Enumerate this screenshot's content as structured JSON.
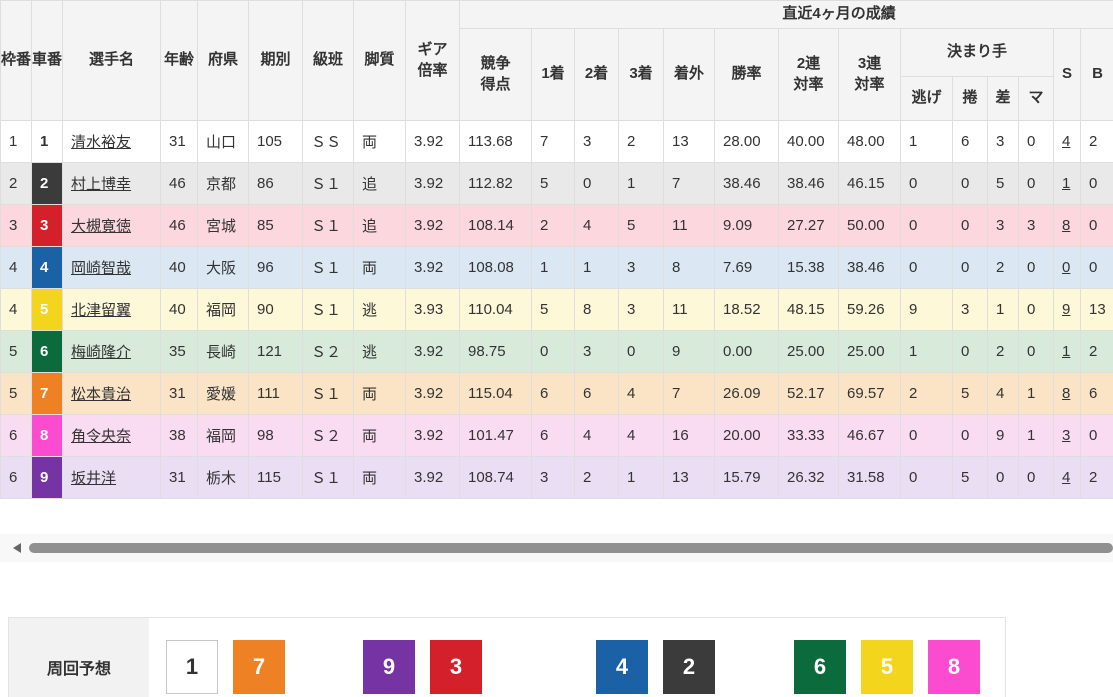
{
  "table": {
    "headers": {
      "waku": "枠番",
      "car": "車番",
      "name": "選手名",
      "age": "年齢",
      "pref": "府県",
      "period": "期別",
      "grade": "級班",
      "style": "脚質",
      "gear": "ギア倍率",
      "group": "直近4ヶ月の成績",
      "points": "競争得点",
      "first": "1着",
      "second": "2着",
      "third": "3着",
      "out": "着外",
      "win": "勝率",
      "q2": "2連対率",
      "q3": "3連対率",
      "kimarite": "決まり手",
      "nige": "逃げ",
      "makuri": "捲",
      "sashi": "差",
      "mark": "マ",
      "s": "S",
      "b": "B"
    },
    "rows": [
      {
        "waku": "1",
        "car": "1",
        "name": "清水裕友",
        "age": "31",
        "pref": "山口",
        "period": "105",
        "grade": "ＳＳ",
        "style": "両",
        "gear": "3.92",
        "points": "113.68",
        "first": "7",
        "second": "3",
        "third": "2",
        "out": "13",
        "win": "28.00",
        "q2": "40.00",
        "q3": "48.00",
        "nige": "1",
        "makuri": "6",
        "sashi": "3",
        "mark": "0",
        "s": "4",
        "b": "2",
        "tint": "#ffffff"
      },
      {
        "waku": "2",
        "car": "2",
        "name": "村上博幸",
        "age": "46",
        "pref": "京都",
        "period": "86",
        "grade": "Ｓ１",
        "style": "追",
        "gear": "3.92",
        "points": "112.82",
        "first": "5",
        "second": "0",
        "third": "1",
        "out": "7",
        "win": "38.46",
        "q2": "38.46",
        "q3": "46.15",
        "nige": "0",
        "makuri": "0",
        "sashi": "5",
        "mark": "0",
        "s": "1",
        "b": "0",
        "tint": "#e9e9e9"
      },
      {
        "waku": "3",
        "car": "3",
        "name": "大槻寛徳",
        "age": "46",
        "pref": "宮城",
        "period": "85",
        "grade": "Ｓ１",
        "style": "追",
        "gear": "3.92",
        "points": "108.14",
        "first": "2",
        "second": "4",
        "third": "5",
        "out": "11",
        "win": "9.09",
        "q2": "27.27",
        "q3": "50.00",
        "nige": "0",
        "makuri": "0",
        "sashi": "3",
        "mark": "3",
        "s": "8",
        "b": "0",
        "tint": "#fcd7de"
      },
      {
        "waku": "4",
        "car": "4",
        "name": "岡崎智哉",
        "age": "40",
        "pref": "大阪",
        "period": "96",
        "grade": "Ｓ１",
        "style": "両",
        "gear": "3.92",
        "points": "108.08",
        "first": "1",
        "second": "1",
        "third": "3",
        "out": "8",
        "win": "7.69",
        "q2": "15.38",
        "q3": "38.46",
        "nige": "0",
        "makuri": "0",
        "sashi": "2",
        "mark": "0",
        "s": "0",
        "b": "0",
        "tint": "#dbe8f4"
      },
      {
        "waku": "4",
        "car": "5",
        "name": "北津留翼",
        "age": "40",
        "pref": "福岡",
        "period": "90",
        "grade": "Ｓ１",
        "style": "逃",
        "gear": "3.93",
        "points": "110.04",
        "first": "5",
        "second": "8",
        "third": "3",
        "out": "11",
        "win": "18.52",
        "q2": "48.15",
        "q3": "59.26",
        "nige": "9",
        "makuri": "3",
        "sashi": "1",
        "mark": "0",
        "s": "9",
        "b": "13",
        "tint": "#fdf8d8"
      },
      {
        "waku": "5",
        "car": "6",
        "name": "梅崎隆介",
        "age": "35",
        "pref": "長崎",
        "period": "121",
        "grade": "Ｓ２",
        "style": "逃",
        "gear": "3.92",
        "points": "98.75",
        "first": "0",
        "second": "3",
        "third": "0",
        "out": "9",
        "win": "0.00",
        "q2": "25.00",
        "q3": "25.00",
        "nige": "1",
        "makuri": "0",
        "sashi": "2",
        "mark": "0",
        "s": "1",
        "b": "2",
        "tint": "#d8ebda"
      },
      {
        "waku": "5",
        "car": "7",
        "name": "松本貴治",
        "age": "31",
        "pref": "愛媛",
        "period": "111",
        "grade": "Ｓ１",
        "style": "両",
        "gear": "3.92",
        "points": "115.04",
        "first": "6",
        "second": "6",
        "third": "4",
        "out": "7",
        "win": "26.09",
        "q2": "52.17",
        "q3": "69.57",
        "nige": "2",
        "makuri": "5",
        "sashi": "4",
        "mark": "1",
        "s": "8",
        "b": "6",
        "tint": "#fbe4c6"
      },
      {
        "waku": "6",
        "car": "8",
        "name": "角令央奈",
        "age": "38",
        "pref": "福岡",
        "period": "98",
        "grade": "Ｓ２",
        "style": "両",
        "gear": "3.92",
        "points": "101.47",
        "first": "6",
        "second": "4",
        "third": "4",
        "out": "16",
        "win": "20.00",
        "q2": "33.33",
        "q3": "46.67",
        "nige": "0",
        "makuri": "0",
        "sashi": "9",
        "mark": "1",
        "s": "3",
        "b": "0",
        "tint": "#fadcf2"
      },
      {
        "waku": "6",
        "car": "9",
        "name": "坂井洋",
        "age": "31",
        "pref": "栃木",
        "period": "115",
        "grade": "Ｓ１",
        "style": "両",
        "gear": "3.92",
        "points": "108.74",
        "first": "3",
        "second": "2",
        "third": "1",
        "out": "13",
        "win": "15.79",
        "q2": "26.32",
        "q3": "31.58",
        "nige": "0",
        "makuri": "5",
        "sashi": "0",
        "mark": "0",
        "s": "4",
        "b": "2",
        "tint": "#e9def4"
      }
    ]
  },
  "car_colors": {
    "1": {
      "bg": "#ffffff",
      "fg": "#333333",
      "border": "#c8c8c8"
    },
    "2": {
      "bg": "#3b3b3b",
      "fg": "#ffffff"
    },
    "3": {
      "bg": "#d3202b",
      "fg": "#ffffff"
    },
    "4": {
      "bg": "#1b61a5",
      "fg": "#ffffff"
    },
    "5": {
      "bg": "#f2d51c",
      "fg": "#ffffff"
    },
    "6": {
      "bg": "#0c6b3d",
      "fg": "#ffffff"
    },
    "7": {
      "bg": "#ee8123",
      "fg": "#ffffff"
    },
    "8": {
      "bg": "#fb4bce",
      "fg": "#ffffff"
    },
    "9": {
      "bg": "#7633a3",
      "fg": "#ffffff"
    }
  },
  "footer": {
    "label": "周回予想",
    "groups": [
      [
        "1",
        "7"
      ],
      [
        "9",
        "3"
      ],
      [
        "4",
        "2"
      ],
      [
        "6",
        "5",
        "8"
      ]
    ]
  }
}
